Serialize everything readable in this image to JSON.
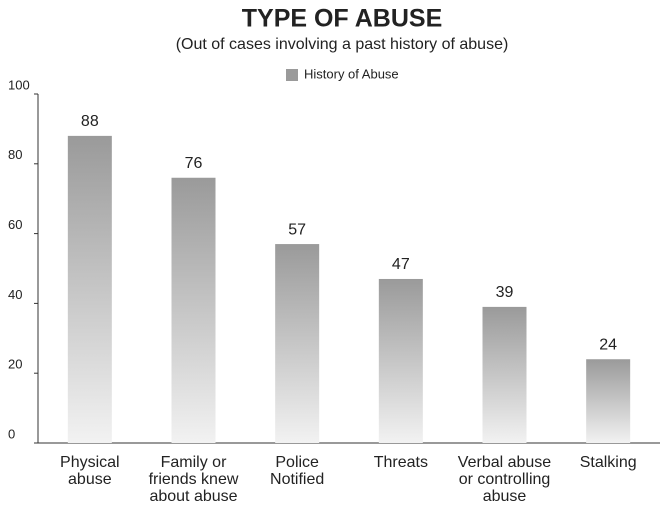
{
  "chart_data": {
    "type": "bar",
    "title": "TYPE OF ABUSE",
    "subtitle": "(Out of cases involving a past history of abuse)",
    "categories": [
      [
        "Physical",
        "abuse"
      ],
      [
        "Family or",
        "friends knew",
        "about abuse"
      ],
      [
        "Police",
        "Notified"
      ],
      [
        "Threats"
      ],
      [
        "Verbal abuse",
        "or controlling",
        "abuse"
      ],
      [
        "Stalking"
      ]
    ],
    "series": [
      {
        "name": "History of Abuse",
        "color": "#9a9a9a",
        "values": [
          88,
          76,
          57,
          47,
          39,
          24
        ]
      }
    ],
    "ylim": [
      0,
      100
    ],
    "yticks": [
      0,
      20,
      40,
      60,
      80,
      100
    ],
    "legend": "top"
  }
}
